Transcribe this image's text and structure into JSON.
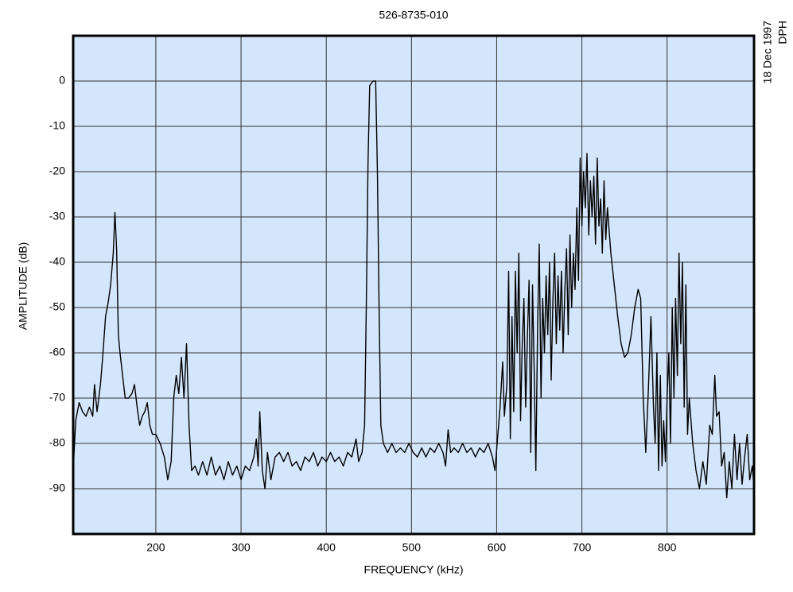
{
  "chart_data": {
    "type": "line",
    "title": "526-8735-010",
    "xlabel": "FREQUENCY (kHz)",
    "ylabel": "AMPLITUDE (dB)",
    "date": "18 Dec 1997",
    "initials": "DPH",
    "color": "#000000",
    "background": "#d3e6fb",
    "grid": true,
    "xlim": [
      103,
      902
    ],
    "ylim": [
      -100,
      10
    ],
    "xticks": [
      200,
      300,
      400,
      500,
      600,
      700,
      800
    ],
    "yticks": [
      0,
      -10,
      -20,
      -30,
      -40,
      -50,
      -60,
      -70,
      -80,
      -90
    ],
    "x": [
      103,
      106,
      110,
      114,
      118,
      122,
      126,
      128,
      131,
      135,
      138,
      141,
      144,
      147,
      150,
      152,
      154,
      156,
      158,
      161,
      164,
      168,
      172,
      175,
      178,
      181,
      184,
      187,
      190,
      193,
      196,
      200,
      205,
      210,
      214,
      218,
      221,
      224,
      227,
      230,
      233,
      236,
      239,
      242,
      246,
      250,
      255,
      260,
      265,
      270,
      275,
      280,
      285,
      290,
      295,
      300,
      305,
      310,
      315,
      318,
      320,
      322,
      325,
      328,
      331,
      335,
      340,
      345,
      350,
      355,
      360,
      365,
      370,
      375,
      380,
      385,
      390,
      395,
      400,
      405,
      410,
      415,
      420,
      425,
      430,
      435,
      438,
      442,
      445,
      447,
      449,
      451,
      455,
      458,
      460,
      462,
      464,
      467,
      472,
      477,
      482,
      487,
      492,
      497,
      502,
      507,
      512,
      517,
      522,
      527,
      532,
      537,
      540,
      543,
      546,
      550,
      555,
      560,
      565,
      570,
      575,
      580,
      585,
      590,
      595,
      598,
      601,
      604,
      607,
      609,
      612,
      614,
      616,
      618,
      620,
      622,
      624,
      626,
      628,
      630,
      632,
      634,
      636,
      638,
      640,
      642,
      644,
      646,
      648,
      650,
      652,
      654,
      656,
      658,
      660,
      662,
      664,
      666,
      668,
      670,
      672,
      674,
      676,
      678,
      680,
      682,
      684,
      686,
      688,
      690,
      692,
      694,
      696,
      698,
      700,
      702,
      704,
      706,
      708,
      710,
      712,
      714,
      716,
      718,
      720,
      722,
      724,
      726,
      728,
      730,
      734,
      738,
      742,
      746,
      750,
      754,
      758,
      762,
      766,
      769,
      772,
      775,
      778,
      781,
      784,
      786,
      788,
      790,
      792,
      794,
      796,
      798,
      800,
      802,
      804,
      806,
      808,
      810,
      812,
      814,
      816,
      818,
      820,
      822,
      824,
      826,
      830,
      834,
      838,
      842,
      846,
      850,
      853,
      856,
      858,
      861,
      864,
      867,
      870,
      873,
      876,
      879,
      882,
      885,
      888,
      891,
      894,
      897,
      900,
      902
    ],
    "y": [
      -86,
      -75,
      -71,
      -73,
      -74,
      -72,
      -74,
      -67,
      -73,
      -67,
      -60,
      -52,
      -49,
      -45,
      -38,
      -29,
      -37,
      -56,
      -60,
      -65,
      -70,
      -70,
      -69,
      -67,
      -72,
      -76,
      -74,
      -73,
      -71,
      -76,
      -78,
      -78,
      -80,
      -83,
      -88,
      -84,
      -70,
      -65,
      -69,
      -61,
      -70,
      -58,
      -76,
      -86,
      -85,
      -87,
      -84,
      -87,
      -83,
      -87,
      -85,
      -88,
      -84,
      -87,
      -85,
      -88,
      -85,
      -86,
      -83,
      -79,
      -85,
      -73,
      -86,
      -90,
      -82,
      -88,
      -83,
      -82,
      -84,
      -82,
      -85,
      -84,
      -86,
      -83,
      -84,
      -82,
      -85,
      -83,
      -84,
      -82,
      -84,
      -83,
      -85,
      -82,
      -83,
      -79,
      -84,
      -82,
      -76,
      -50,
      -18,
      -1,
      0,
      0,
      -20,
      -50,
      -76,
      -80,
      -82,
      -80,
      -82,
      -81,
      -82,
      -80,
      -82,
      -83,
      -81,
      -83,
      -81,
      -82,
      -80,
      -82,
      -85,
      -77,
      -82,
      -81,
      -82,
      -80,
      -82,
      -81,
      -83,
      -81,
      -82,
      -80,
      -83,
      -86,
      -79,
      -72,
      -62,
      -74,
      -67,
      -42,
      -79,
      -52,
      -73,
      -42,
      -60,
      -38,
      -75,
      -58,
      -48,
      -72,
      -57,
      -44,
      -82,
      -45,
      -64,
      -86,
      -54,
      -36,
      -70,
      -48,
      -60,
      -43,
      -56,
      -40,
      -66,
      -48,
      -38,
      -58,
      -43,
      -55,
      -42,
      -60,
      -46,
      -37,
      -56,
      -34,
      -50,
      -38,
      -46,
      -28,
      -44,
      -17,
      -32,
      -20,
      -28,
      -16,
      -34,
      -22,
      -30,
      -21,
      -36,
      -17,
      -32,
      -26,
      -38,
      -22,
      -35,
      -28,
      -38,
      -45,
      -52,
      -58,
      -61,
      -60,
      -56,
      -50,
      -46,
      -48,
      -70,
      -82,
      -68,
      -52,
      -72,
      -80,
      -60,
      -86,
      -65,
      -85,
      -75,
      -84,
      -70,
      -60,
      -80,
      -50,
      -70,
      -48,
      -65,
      -38,
      -58,
      -40,
      -72,
      -45,
      -78,
      -70,
      -80,
      -86,
      -90,
      -84,
      -89,
      -76,
      -78,
      -65,
      -74,
      -73,
      -85,
      -82,
      -92,
      -84,
      -90,
      -78,
      -88,
      -80,
      -89,
      -83,
      -78,
      -88,
      -85,
      -90
    ]
  }
}
